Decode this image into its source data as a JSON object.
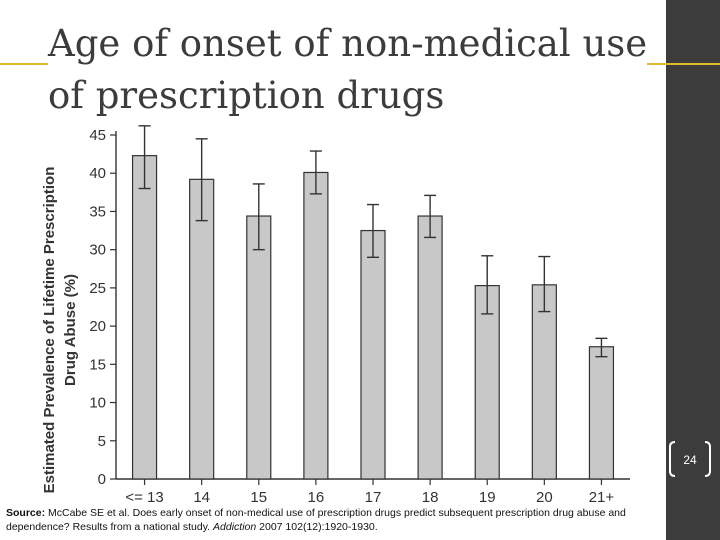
{
  "slide": {
    "title": "Age of onset of non-medical use of prescription drugs",
    "page_number": "24",
    "colors": {
      "sidebar": "#3c3c3c",
      "accent_line": "#e1b92a",
      "bar_fill": "#c8c8c8",
      "bar_stroke": "#333333"
    },
    "source": {
      "label": "Source:",
      "text_before": "McCabe SE et al. Does early onset of non-medical use of prescription drugs predict subsequent prescription drug abuse and dependence? Results from a national study.",
      "journal": "Addiction",
      "text_after": "2007 102(12):1920-1930."
    }
  },
  "chart_data": {
    "type": "bar",
    "title": "",
    "xlabel": "",
    "ylabel_line1": "Estimated Prevalence of Lifetime Prescription",
    "ylabel_line2": "Drug Abuse (%)",
    "categories": [
      "<= 13",
      "14",
      "15",
      "16",
      "17",
      "18",
      "19",
      "20",
      "21+"
    ],
    "values": [
      42.3,
      39.2,
      34.4,
      40.1,
      32.5,
      34.4,
      25.3,
      25.4,
      17.3
    ],
    "error_low": [
      38.0,
      33.8,
      30.0,
      37.3,
      29.0,
      31.6,
      21.6,
      21.9,
      16.0
    ],
    "error_high": [
      46.2,
      44.5,
      38.6,
      42.9,
      35.9,
      37.1,
      29.2,
      29.1,
      18.4
    ],
    "ylim": [
      0,
      45
    ],
    "yticks": [
      0,
      5,
      10,
      15,
      20,
      25,
      30,
      35,
      40,
      45
    ],
    "grid": false
  }
}
